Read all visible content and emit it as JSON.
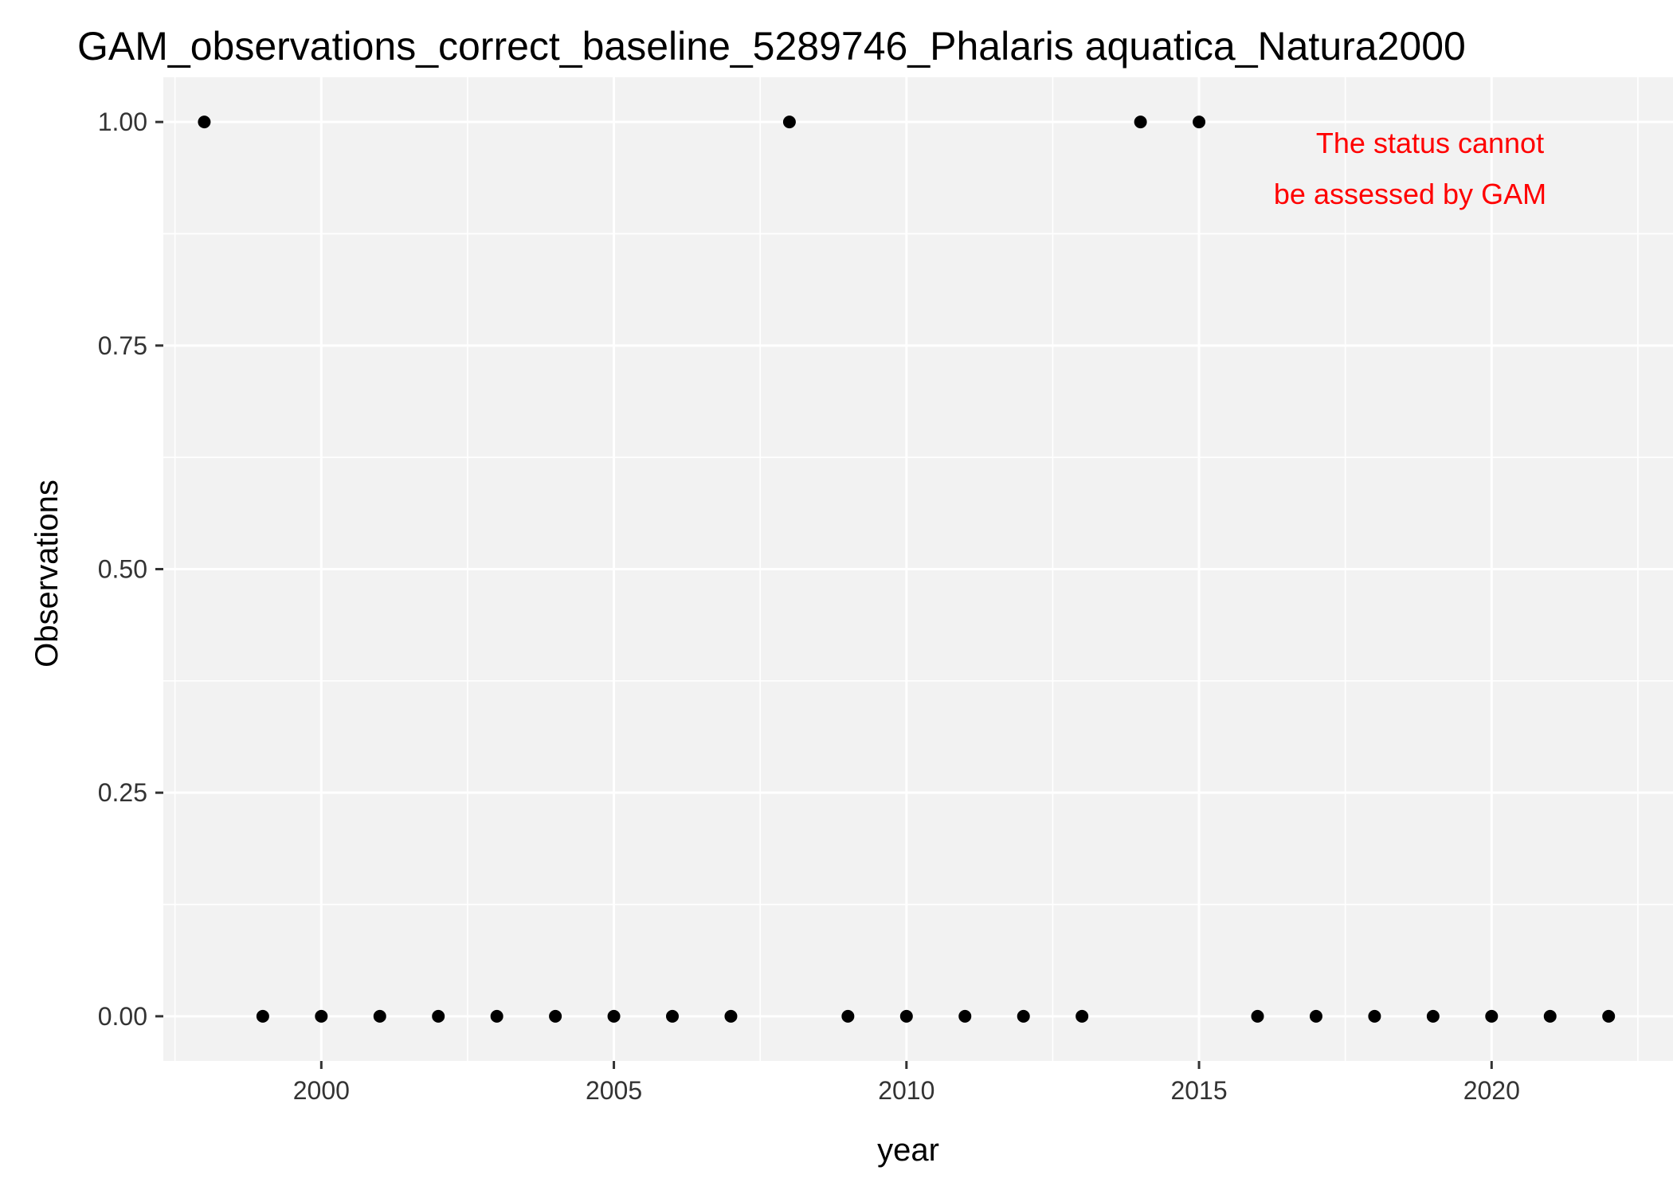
{
  "chart_data": {
    "type": "scatter",
    "title": "GAM_observations_correct_baseline_5289746_Phalaris aquatica_Natura2000",
    "xlabel": "year",
    "ylabel": "Observations",
    "xlim": [
      1997.3,
      2023.1
    ],
    "ylim": [
      -0.05,
      1.05
    ],
    "x_ticks": [
      2000,
      2005,
      2010,
      2015,
      2020
    ],
    "x_tick_labels": [
      "2000",
      "2005",
      "2010",
      "2015",
      "2020"
    ],
    "y_ticks": [
      0,
      0.25,
      0.5,
      0.75,
      1
    ],
    "y_tick_labels": [
      "0.00",
      "0.25",
      "0.50",
      "0.75",
      "1.00"
    ],
    "grid": true,
    "legend": "none",
    "point_color": "#000000",
    "panel_color": "#f2f2f2",
    "grid_color": "#ffffff",
    "points": [
      {
        "x": 1998,
        "y": 1
      },
      {
        "x": 1999,
        "y": 0
      },
      {
        "x": 2000,
        "y": 0
      },
      {
        "x": 2001,
        "y": 0
      },
      {
        "x": 2002,
        "y": 0
      },
      {
        "x": 2003,
        "y": 0
      },
      {
        "x": 2004,
        "y": 0
      },
      {
        "x": 2005,
        "y": 0
      },
      {
        "x": 2006,
        "y": 0
      },
      {
        "x": 2007,
        "y": 0
      },
      {
        "x": 2008,
        "y": 1
      },
      {
        "x": 2009,
        "y": 0
      },
      {
        "x": 2010,
        "y": 0
      },
      {
        "x": 2011,
        "y": 0
      },
      {
        "x": 2012,
        "y": 0
      },
      {
        "x": 2013,
        "y": 0
      },
      {
        "x": 2014,
        "y": 1
      },
      {
        "x": 2015,
        "y": 1
      },
      {
        "x": 2016,
        "y": 0
      },
      {
        "x": 2017,
        "y": 0
      },
      {
        "x": 2018,
        "y": 0
      },
      {
        "x": 2019,
        "y": 0
      },
      {
        "x": 2020,
        "y": 0
      },
      {
        "x": 2021,
        "y": 0
      },
      {
        "x": 2022,
        "y": 0
      }
    ],
    "annotation": {
      "lines": [
        "The status cannot",
        "be assessed by GAM"
      ],
      "color": "#ff0000"
    }
  }
}
